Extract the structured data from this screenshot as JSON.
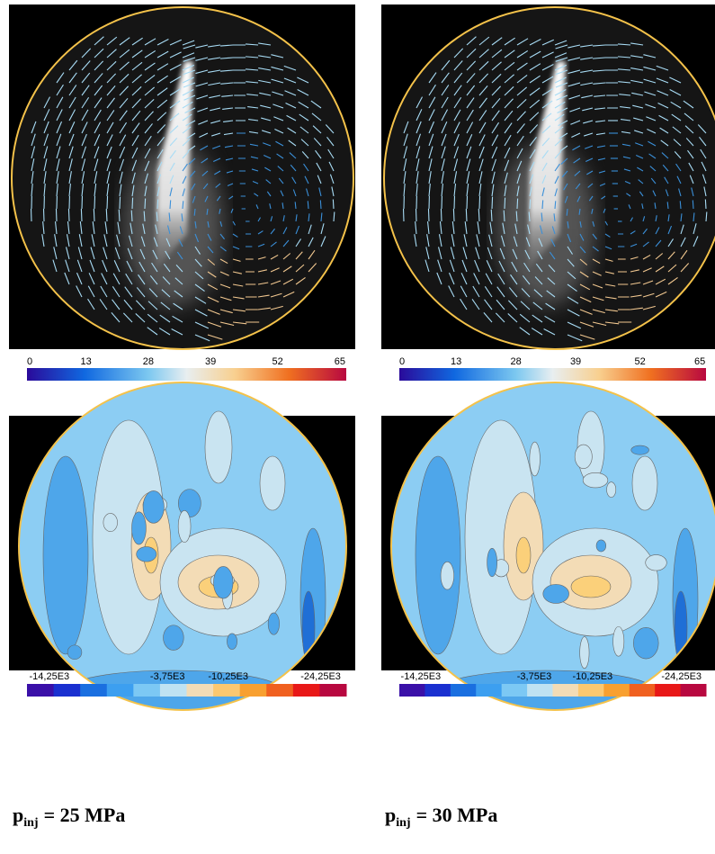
{
  "panels": [
    {
      "velocity_colorbar": [
        "0",
        "13",
        "28",
        "39",
        "52",
        "65"
      ],
      "vorticity_colorbar": [
        "-14,25E3",
        "-3,75E3",
        "-10,25E3",
        "-24,25E3"
      ],
      "caption": {
        "symbol": "p",
        "subscript": "inj",
        "text": "= 25 MPa"
      }
    },
    {
      "velocity_colorbar": [
        "0",
        "13",
        "28",
        "39",
        "52",
        "65"
      ],
      "vorticity_colorbar": [
        "-14,25E3",
        "-3,75E3",
        "-10,25E3",
        "-24,25E3"
      ],
      "caption": {
        "symbol": "p",
        "subscript": "inj",
        "text": "= 30 MPa"
      }
    }
  ]
}
